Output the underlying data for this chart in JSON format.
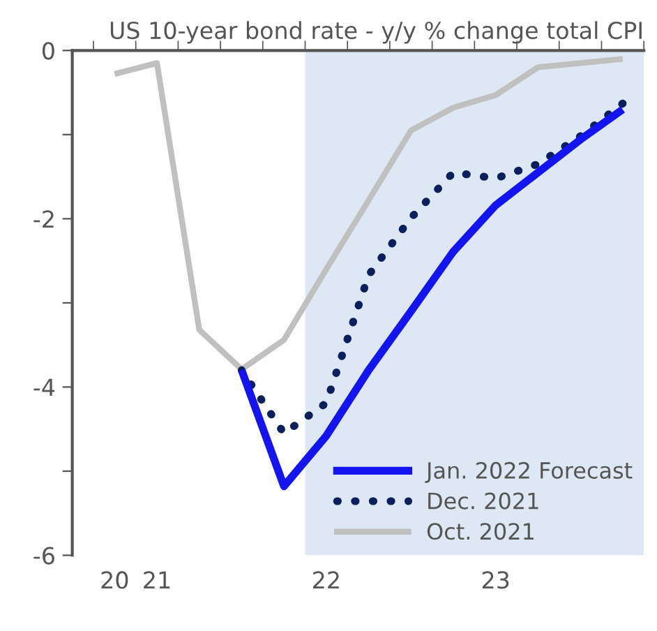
{
  "chart_data": {
    "type": "line",
    "title": "US 10-year bond rate - y/y % change total CPI",
    "categories": [
      "20",
      "21",
      null,
      null,
      null,
      "22",
      null,
      null,
      null,
      "23",
      null,
      null,
      null
    ],
    "series": [
      {
        "name": "Jan. 2022 Forecast",
        "color": "#1414f0",
        "line_style": "solid",
        "values": [
          null,
          null,
          null,
          -3.8,
          -5.18,
          -4.58,
          -3.8,
          -3.1,
          -2.39,
          -1.84,
          -1.45,
          -1.06,
          -0.7
        ]
      },
      {
        "name": "Dec. 2021",
        "color": "#0a1f5c",
        "line_style": "dotted",
        "values": [
          null,
          null,
          null,
          -3.8,
          -4.55,
          -4.19,
          -2.67,
          -1.99,
          -1.45,
          -1.52,
          -1.35,
          -1.02,
          -0.63
        ]
      },
      {
        "name": "Oct. 2021",
        "color": "#c0c0c0",
        "line_style": "solid",
        "values": [
          -0.28,
          -0.15,
          -3.32,
          -3.79,
          -3.44,
          -2.6,
          -1.78,
          -0.95,
          -0.68,
          -0.53,
          -0.2,
          -0.15,
          -0.1
        ]
      }
    ],
    "ylim": [
      -6,
      0
    ],
    "yticks": [
      0,
      {
        "value": -1,
        "label": null
      },
      -2,
      {
        "value": -3,
        "label": null
      },
      -4,
      {
        "value": -5,
        "label": null
      },
      -6
    ],
    "grid": false,
    "legend": "bottom right",
    "marker": "none"
  }
}
